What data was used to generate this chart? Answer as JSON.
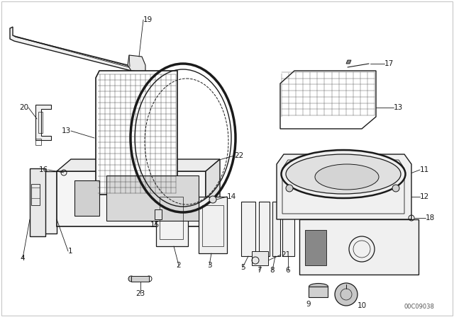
{
  "bg_color": "#ffffff",
  "line_color": "#1a1a1a",
  "part_number": "00C09038",
  "figsize": [
    6.4,
    4.48
  ],
  "dpi": 100
}
